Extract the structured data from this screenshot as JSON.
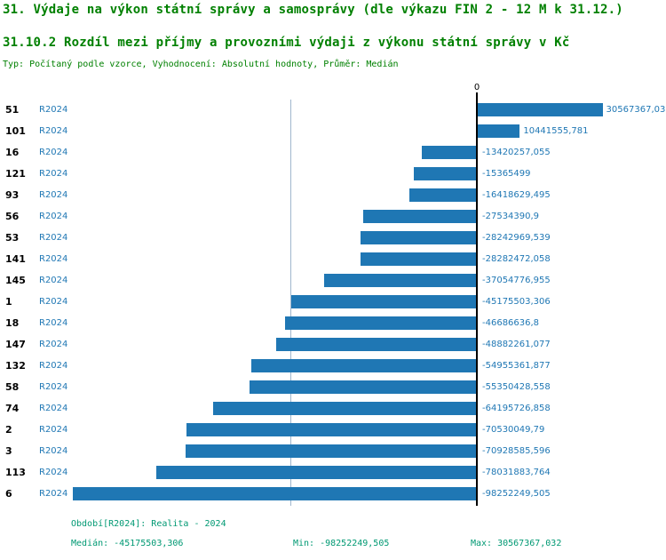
{
  "header": {
    "title_line1": "31. Výdaje na výkon státní správy a samosprávy (dle výkazu FIN 2 - 12 M k 31.12.)",
    "title_line2": "31.10.2 Rozdíl mezi příjmy a provozními výdaji z výkonu státní správy v Kč",
    "type_line": "Typ: Počítaný podle vzorce, Vyhodnocení: Absolutní hodnoty, Průměr: Medián"
  },
  "colors": {
    "bar": "#1f77b4",
    "value_blue": "#1f77b4",
    "title_green": "#008000",
    "footer_green": "#009973",
    "median_line": "#9fb6cd",
    "zero_axis": "#000000"
  },
  "chart_data": {
    "type": "bar",
    "orientation": "horizontal",
    "title": "31.10.2 Rozdíl mezi příjmy a provozními výdaji z výkonu státní správy v Kč",
    "series_name": "R2024",
    "zero_tick_label": "0",
    "xlim": [
      -98252249.505,
      30567367.032
    ],
    "median": -45175503.306,
    "grid": false,
    "legend_position": "bottom",
    "categories": [
      "51",
      "101",
      "16",
      "121",
      "93",
      "56",
      "53",
      "141",
      "145",
      "1",
      "18",
      "147",
      "132",
      "58",
      "74",
      "2",
      "3",
      "113",
      "6"
    ],
    "rows": [
      {
        "id": "51",
        "period": "R2024",
        "value": 30567367.03,
        "value_label": "30567367,03"
      },
      {
        "id": "101",
        "period": "R2024",
        "value": 10441555.781,
        "value_label": "10441555,781"
      },
      {
        "id": "16",
        "period": "R2024",
        "value": -13420257.055,
        "value_label": "-13420257,055"
      },
      {
        "id": "121",
        "period": "R2024",
        "value": -15365499,
        "value_label": "-15365499"
      },
      {
        "id": "93",
        "period": "R2024",
        "value": -16418629.495,
        "value_label": "-16418629,495"
      },
      {
        "id": "56",
        "period": "R2024",
        "value": -27534390.9,
        "value_label": "-27534390,9"
      },
      {
        "id": "53",
        "period": "R2024",
        "value": -28242969.539,
        "value_label": "-28242969,539"
      },
      {
        "id": "141",
        "period": "R2024",
        "value": -28282472.058,
        "value_label": "-28282472,058"
      },
      {
        "id": "145",
        "period": "R2024",
        "value": -37054776.955,
        "value_label": "-37054776,955"
      },
      {
        "id": "1",
        "period": "R2024",
        "value": -45175503.306,
        "value_label": "-45175503,306"
      },
      {
        "id": "18",
        "period": "R2024",
        "value": -46686636.8,
        "value_label": "-46686636,8"
      },
      {
        "id": "147",
        "period": "R2024",
        "value": -48882261.077,
        "value_label": "-48882261,077"
      },
      {
        "id": "132",
        "period": "R2024",
        "value": -54955361.877,
        "value_label": "-54955361,877"
      },
      {
        "id": "58",
        "period": "R2024",
        "value": -55350428.558,
        "value_label": "-55350428,558"
      },
      {
        "id": "74",
        "period": "R2024",
        "value": -64195726.858,
        "value_label": "-64195726,858"
      },
      {
        "id": "2",
        "period": "R2024",
        "value": -70530049.79,
        "value_label": "-70530049,79"
      },
      {
        "id": "3",
        "period": "R2024",
        "value": -70928585.596,
        "value_label": "-70928585,596"
      },
      {
        "id": "113",
        "period": "R2024",
        "value": -78031883.764,
        "value_label": "-78031883,764"
      },
      {
        "id": "6",
        "period": "R2024",
        "value": -98252249.505,
        "value_label": "-98252249,505"
      }
    ]
  },
  "footer": {
    "period_line": "Období[R2024]: Realita - 2024",
    "median_label": "Medián: -45175503,306",
    "min_label": "Min: -98252249,505",
    "max_label": "Max: 30567367,032"
  }
}
